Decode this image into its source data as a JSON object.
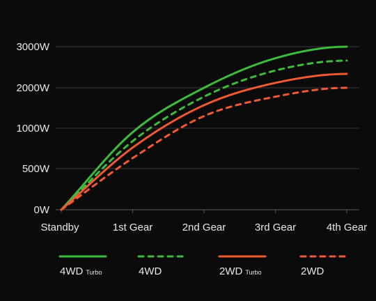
{
  "chart_data": {
    "type": "line",
    "title": "",
    "xlabel": "",
    "ylabel": "",
    "categories": [
      "Standby",
      "1st Gear",
      "2nd Gear",
      "3rd Gear",
      "4th Gear"
    ],
    "y_ticks": [
      {
        "value": 0,
        "label": "0W"
      },
      {
        "value": 500,
        "label": "500W"
      },
      {
        "value": 1000,
        "label": "1000W"
      },
      {
        "value": 2000,
        "label": "2000W"
      },
      {
        "value": 3000,
        "label": "3000W"
      }
    ],
    "grid": true,
    "legend_position": "bottom",
    "series": [
      {
        "name": "4WD",
        "name_sub": "Turbo",
        "color": "#3dbb3d",
        "dash": false,
        "values": [
          0,
          950,
          2000,
          2720,
          3000
        ]
      },
      {
        "name": "4WD",
        "name_sub": "",
        "color": "#3dbb3d",
        "dash": true,
        "values": [
          0,
          840,
          1780,
          2420,
          2660
        ]
      },
      {
        "name": "2WD",
        "name_sub": "Turbo",
        "color": "#ef5a32",
        "dash": false,
        "values": [
          0,
          760,
          1570,
          2120,
          2340
        ]
      },
      {
        "name": "2WD",
        "name_sub": "",
        "color": "#ef5a32",
        "dash": true,
        "values": [
          0,
          630,
          1300,
          1780,
          2000
        ]
      }
    ]
  }
}
